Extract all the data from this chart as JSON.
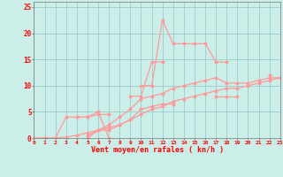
{
  "bg_color": "#cceee8",
  "grid_color": "#99cccc",
  "line_color": "#ff9999",
  "xlabel": "Vent moyen/en rafales ( kn/h )",
  "ylim": [
    0,
    26
  ],
  "xlim": [
    0,
    23
  ],
  "series": [
    [
      0,
      0,
      0,
      4,
      4,
      4,
      5,
      0,
      null,
      null,
      10,
      10,
      22.5,
      18,
      18,
      18,
      18,
      14.5,
      14.5,
      null,
      null,
      null,
      null,
      null
    ],
    [
      0,
      0,
      0,
      null,
      4,
      4,
      4.5,
      4.5,
      null,
      8,
      8,
      14.5,
      14.5,
      null,
      null,
      null,
      null,
      null,
      null,
      null,
      null,
      null,
      null,
      null
    ],
    [
      null,
      null,
      null,
      null,
      null,
      0,
      1.5,
      2.5,
      4,
      5.5,
      7.5,
      8,
      8.5,
      9.5,
      10,
      10.5,
      11,
      11.5,
      10.5,
      10.5,
      10.5,
      11,
      11.5,
      11.5
    ],
    [
      null,
      null,
      null,
      null,
      null,
      0.5,
      1.5,
      1.5,
      2.5,
      3.5,
      5.5,
      6,
      6.5,
      6.5,
      null,
      null,
      null,
      8,
      8,
      8,
      null,
      null,
      12,
      null
    ],
    [
      0,
      0,
      0,
      0.2,
      0.5,
      1,
      1.5,
      2,
      2.5,
      3.5,
      4.5,
      5.5,
      6,
      7,
      7.5,
      8,
      8.5,
      9,
      9.5,
      9.5,
      10,
      10.5,
      11,
      11.5
    ]
  ]
}
